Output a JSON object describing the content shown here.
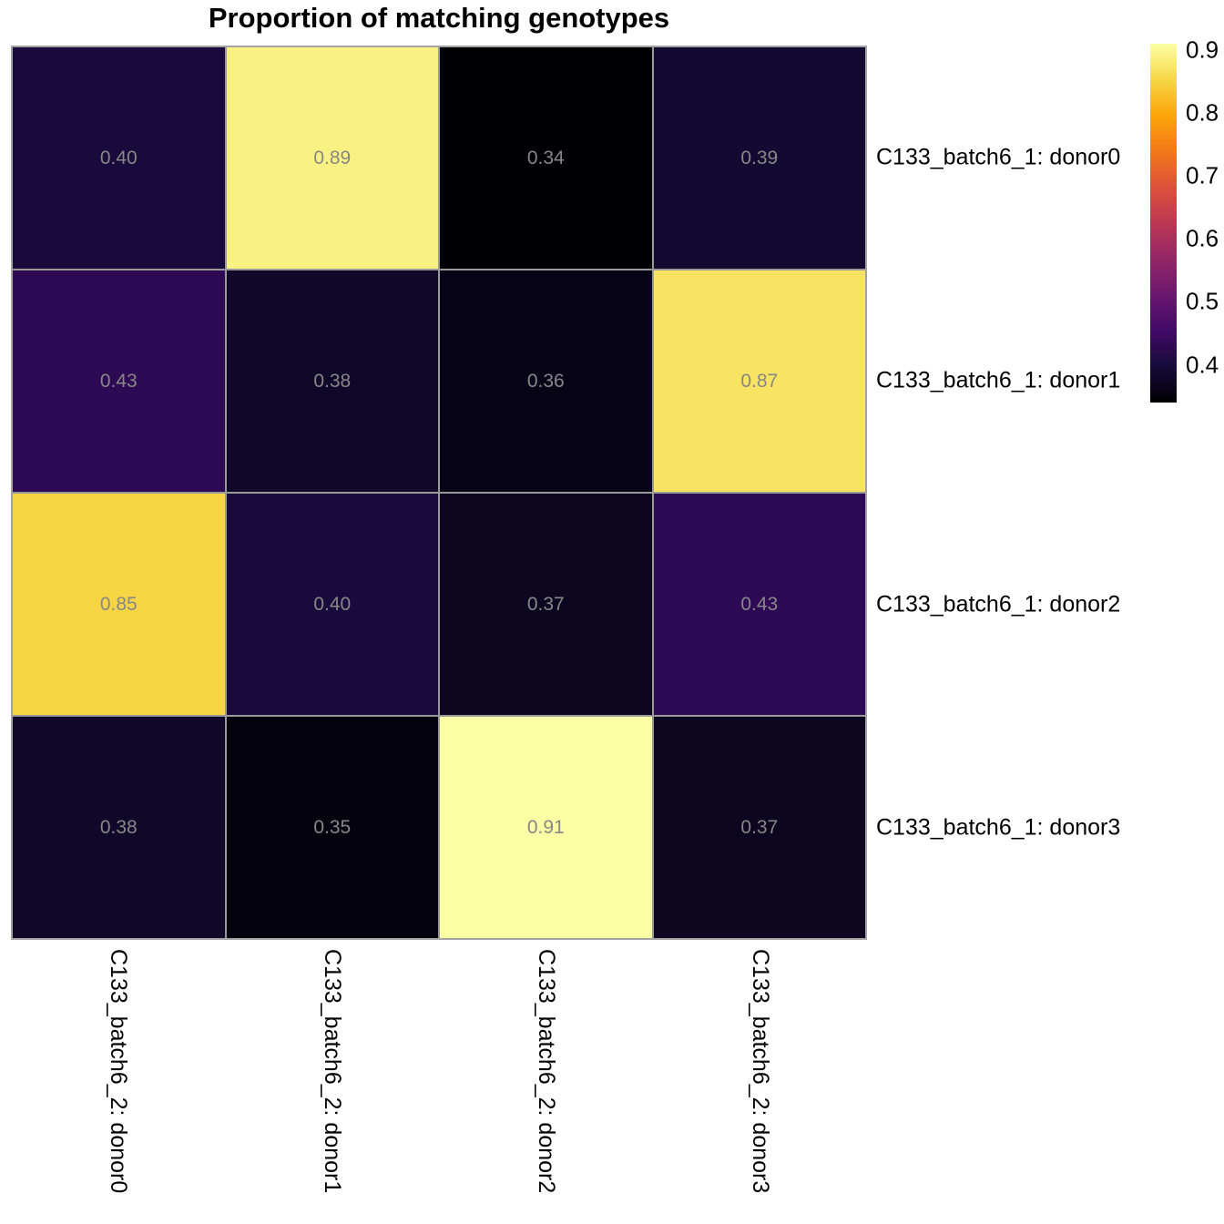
{
  "title": "Proportion of matching genotypes",
  "chart_data": {
    "type": "heatmap",
    "title": "Proportion of matching genotypes",
    "row_labels": [
      "C133_batch6_1: donor0",
      "C133_batch6_1: donor1",
      "C133_batch6_1: donor2",
      "C133_batch6_1: donor3"
    ],
    "col_labels": [
      "C133_batch6_2: donor0",
      "C133_batch6_2: donor1",
      "C133_batch6_2: donor2",
      "C133_batch6_2: donor3"
    ],
    "values": [
      [
        0.4,
        0.89,
        0.34,
        0.39
      ],
      [
        0.43,
        0.38,
        0.36,
        0.87
      ],
      [
        0.85,
        0.4,
        0.37,
        0.43
      ],
      [
        0.38,
        0.35,
        0.91,
        0.37
      ]
    ],
    "vmin": 0.34,
    "vmax": 0.91,
    "value_decimals": 2,
    "colormap": "inferno",
    "colormap_stops": [
      [
        0.0,
        "#000004"
      ],
      [
        0.1,
        "#160b39"
      ],
      [
        0.2,
        "#420a68"
      ],
      [
        0.3,
        "#6a176e"
      ],
      [
        0.4,
        "#932667"
      ],
      [
        0.5,
        "#bc3754"
      ],
      [
        0.6,
        "#dd513a"
      ],
      [
        0.7,
        "#f37819"
      ],
      [
        0.8,
        "#fca50a"
      ],
      [
        0.9,
        "#f6d746"
      ],
      [
        1.0,
        "#fcffa4"
      ]
    ],
    "colorbar_ticks": [
      0.9,
      0.8,
      0.7,
      0.6,
      0.5,
      0.4
    ],
    "colorbar_tick_decimals": 1,
    "grid_line_color": "#999999",
    "cell_text_color": "#878787",
    "legend_position": "right",
    "grid": "off"
  }
}
